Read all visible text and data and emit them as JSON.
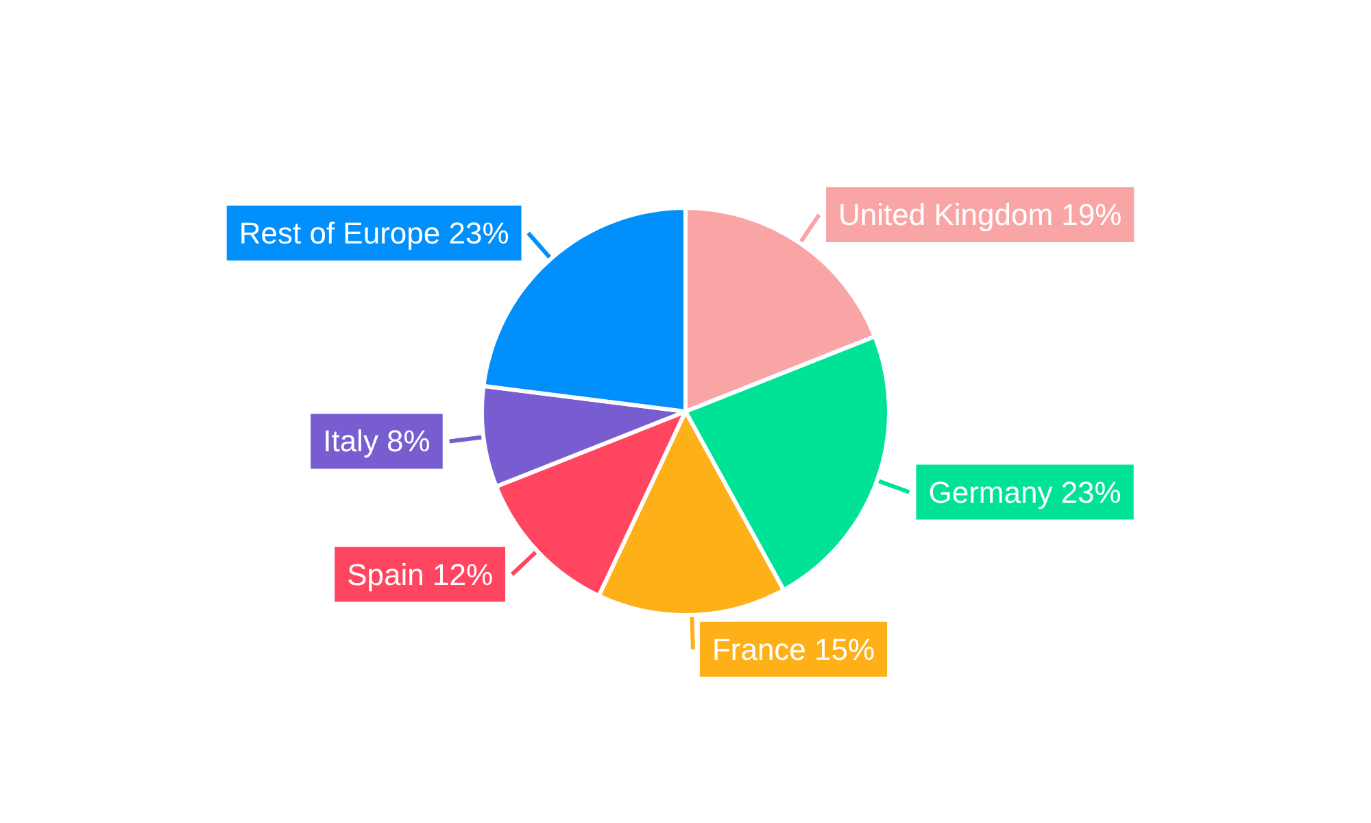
{
  "chart_data": {
    "type": "pie",
    "categories": [
      "United Kingdom",
      "Germany",
      "France",
      "Spain",
      "Italy",
      "Rest of Europe"
    ],
    "values": [
      19,
      23,
      15,
      12,
      8,
      23
    ],
    "value_labels": [
      "19%",
      "23%",
      "15%",
      "12%",
      "8%",
      "23%"
    ],
    "colors": [
      "#f9a5a6",
      "#00e396",
      "#feb019",
      "#ff4560",
      "#775dd0",
      "#008ffb"
    ],
    "legend": false
  }
}
